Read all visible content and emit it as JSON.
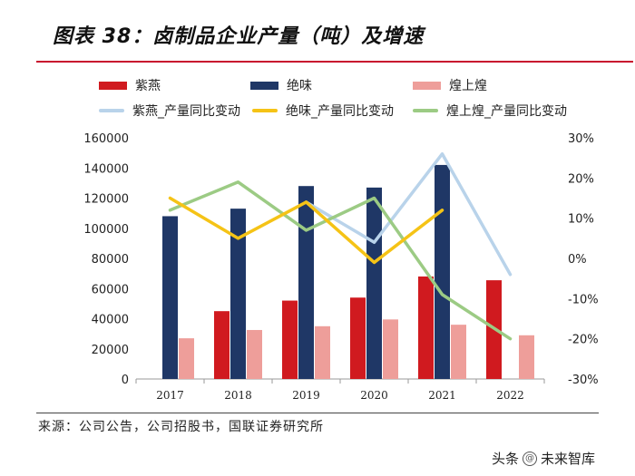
{
  "header": {
    "title": "图表 38：卤制品企业产量（吨）及增速"
  },
  "source": {
    "text": "来源：公司公告，公司招股书，国联证券研究所"
  },
  "watermark": {
    "prefix": "头条",
    "at": "@",
    "name": "未来智库"
  },
  "colors": {
    "zixian": "#d01a1f",
    "juewei": "#1f3766",
    "huang": "#ee9e9a",
    "zixian_line": "#b9d3ea",
    "juewei_line": "#f5c316",
    "huang_line": "#9ccb84",
    "accent": "#c8102e"
  },
  "chart_data": {
    "type": "bar",
    "title": "卤制品企业产量（吨）及增速",
    "categories": [
      "2017",
      "2018",
      "2019",
      "2020",
      "2021",
      "2022"
    ],
    "ylim": [
      0,
      160000
    ],
    "yticks": [
      "0",
      "20000",
      "40000",
      "60000",
      "80000",
      "100000",
      "120000",
      "140000",
      "160000"
    ],
    "y2lim": [
      -30,
      30
    ],
    "y2ticks": [
      "-30%",
      "-20%",
      "-10%",
      "0%",
      "10%",
      "20%",
      "30%"
    ],
    "series": [
      {
        "name": "紫燕",
        "kind": "bar",
        "color_key": "zixian",
        "values": [
          null,
          45000,
          52000,
          54000,
          68000,
          65500
        ]
      },
      {
        "name": "绝味",
        "kind": "bar",
        "color_key": "juewei",
        "values": [
          108000,
          113000,
          128000,
          127000,
          142000,
          null
        ]
      },
      {
        "name": "煌上煌",
        "kind": "bar",
        "color_key": "huang",
        "values": [
          27000,
          32500,
          35000,
          39500,
          36000,
          29000
        ]
      },
      {
        "name": "紫燕_产量同比变动",
        "kind": "line",
        "color_key": "zixian_line",
        "values": [
          null,
          null,
          14,
          4,
          26,
          -4
        ]
      },
      {
        "name": "绝味_产量同比变动",
        "kind": "line",
        "color_key": "juewei_line",
        "values": [
          15,
          5,
          14,
          -1,
          12,
          null
        ]
      },
      {
        "name": "煌上煌_产量同比变动",
        "kind": "line",
        "color_key": "huang_line",
        "values": [
          12,
          19,
          7,
          15,
          -9,
          -20
        ]
      }
    ],
    "legend_position": "top"
  }
}
